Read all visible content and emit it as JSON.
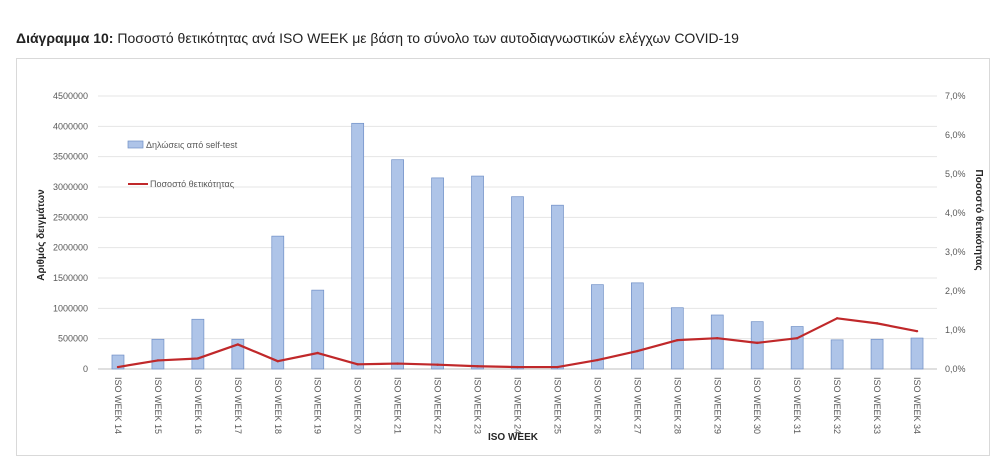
{
  "header": {
    "lead": "Διάγραμμα 10:",
    "text": "Ποσοστό θετικότητας ανά ISO WEEK με βάση το σύνολο των αυτοδιαγνωστικών ελέγχων COVID-19"
  },
  "chart_data": {
    "type": "bar",
    "title": "Διάγραμμα 10: Ποσοστό θετικότητας ανά ISO WEEK με βάση το σύνολο των αυτοδιαγνωστικών ελέγχων COVID-19",
    "xlabel": "ISO WEEK",
    "ylabel": "Αριθμός δειγμάτων",
    "y2label": "Ποσοστό θετικότητας",
    "ylim": [
      0,
      4500000
    ],
    "y2lim": [
      0,
      7.0
    ],
    "yticks": [
      "0",
      "500000",
      "1000000",
      "1500000",
      "2000000",
      "2500000",
      "3000000",
      "3500000",
      "4000000",
      "4500000"
    ],
    "y2ticks": [
      "0,0%",
      "1,0%",
      "2,0%",
      "3,0%",
      "4,0%",
      "5,0%",
      "6,0%",
      "7,0%"
    ],
    "grid": true,
    "legend_position": "top-left",
    "categories": [
      "ISO WEEK 14",
      "ISO WEEK 15",
      "ISO WEEK 16",
      "ISO WEEK 17",
      "ISO WEEK 18",
      "ISO WEEK 19",
      "ISO WEEK 20",
      "ISO WEEK 21",
      "ISO WEEK 22",
      "ISO WEEK 23",
      "ISO WEEK 24",
      "ISO WEEK 25",
      "ISO WEEK 26",
      "ISO WEEK 27",
      "ISO WEEK 28",
      "ISO WEEK 29",
      "ISO WEEK 30",
      "ISO WEEK 31",
      "ISO WEEK 32",
      "ISO WEEK 33",
      "ISO WEEK 34"
    ],
    "series": [
      {
        "name": "Δηλώσεις από self-test",
        "type": "bar",
        "axis": "left",
        "color": "#aec4e8",
        "values": [
          230000,
          490000,
          820000,
          490000,
          2190000,
          1300000,
          4050000,
          3450000,
          3150000,
          3180000,
          2840000,
          2700000,
          1390000,
          1420000,
          1010000,
          890000,
          780000,
          700000,
          480000,
          490000,
          510000
        ]
      },
      {
        "name": "Ποσοστό θετικότητας",
        "type": "line",
        "axis": "right",
        "color": "#c0282a",
        "values": [
          0.05,
          0.22,
          0.27,
          0.63,
          0.2,
          0.41,
          0.12,
          0.14,
          0.11,
          0.07,
          0.05,
          0.05,
          0.23,
          0.46,
          0.74,
          0.79,
          0.67,
          0.79,
          1.3,
          1.17,
          0.97
        ]
      }
    ]
  }
}
